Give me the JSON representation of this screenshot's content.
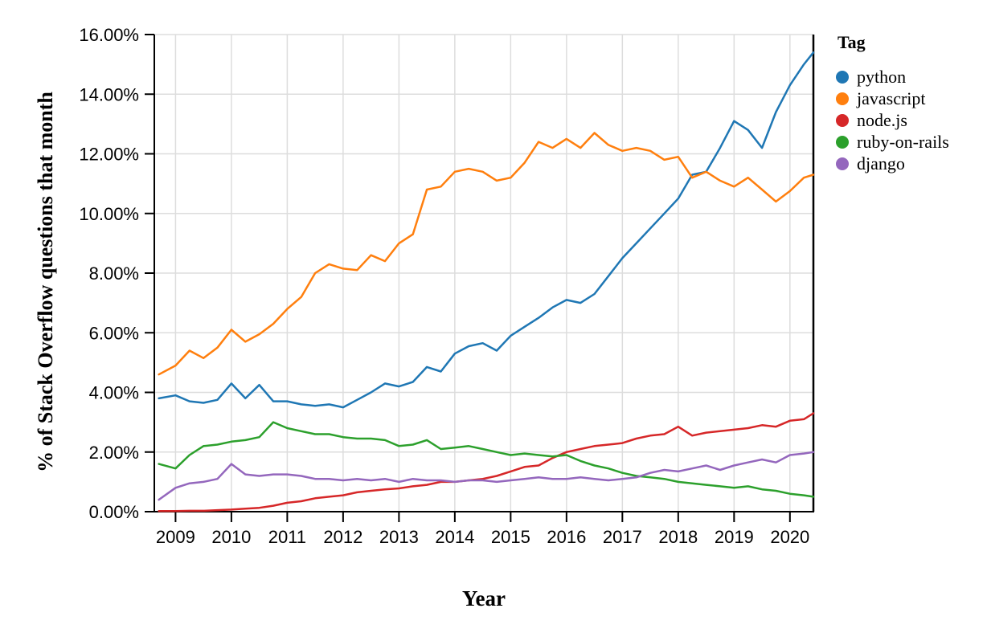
{
  "chart_data": {
    "type": "line",
    "title": "",
    "xlabel": "Year",
    "ylabel": "% of Stack Overflow questions that month",
    "legend_title": "Tag",
    "legend_position": "top-right",
    "grid": true,
    "xlim": [
      2008.62,
      2020.42
    ],
    "ylim": [
      0,
      16
    ],
    "x_ticks": [
      {
        "value": 2009,
        "label": "2009"
      },
      {
        "value": 2010,
        "label": "2010"
      },
      {
        "value": 2011,
        "label": "2011"
      },
      {
        "value": 2012,
        "label": "2012"
      },
      {
        "value": 2013,
        "label": "2013"
      },
      {
        "value": 2014,
        "label": "2014"
      },
      {
        "value": 2015,
        "label": "2015"
      },
      {
        "value": 2016,
        "label": "2016"
      },
      {
        "value": 2017,
        "label": "2017"
      },
      {
        "value": 2018,
        "label": "2018"
      },
      {
        "value": 2019,
        "label": "2019"
      },
      {
        "value": 2020,
        "label": "2020"
      }
    ],
    "y_ticks": [
      {
        "value": 0,
        "label": "0.00%"
      },
      {
        "value": 2,
        "label": "2.00%"
      },
      {
        "value": 4,
        "label": "4.00%"
      },
      {
        "value": 6,
        "label": "6.00%"
      },
      {
        "value": 8,
        "label": "8.00%"
      },
      {
        "value": 10,
        "label": "10.00%"
      },
      {
        "value": 12,
        "label": "12.00%"
      },
      {
        "value": 14,
        "label": "14.00%"
      },
      {
        "value": 16,
        "label": "16.00%"
      }
    ],
    "x": [
      2008.7,
      2009.0,
      2009.25,
      2009.5,
      2009.75,
      2010.0,
      2010.25,
      2010.5,
      2010.75,
      2011.0,
      2011.25,
      2011.5,
      2011.75,
      2012.0,
      2012.25,
      2012.5,
      2012.75,
      2013.0,
      2013.25,
      2013.5,
      2013.75,
      2014.0,
      2014.25,
      2014.5,
      2014.75,
      2015.0,
      2015.25,
      2015.5,
      2015.75,
      2016.0,
      2016.25,
      2016.5,
      2016.75,
      2017.0,
      2017.25,
      2017.5,
      2017.75,
      2018.0,
      2018.25,
      2018.5,
      2018.75,
      2019.0,
      2019.25,
      2019.5,
      2019.75,
      2020.0,
      2020.25,
      2020.42
    ],
    "series": [
      {
        "name": "python",
        "color": "#1f77b4",
        "values": [
          3.8,
          3.9,
          3.7,
          3.65,
          3.75,
          4.3,
          3.8,
          4.25,
          3.7,
          3.7,
          3.6,
          3.55,
          3.6,
          3.5,
          3.75,
          4.0,
          4.3,
          4.2,
          4.35,
          4.85,
          4.7,
          5.3,
          5.55,
          5.65,
          5.4,
          5.9,
          6.2,
          6.5,
          6.85,
          7.1,
          7.0,
          7.3,
          7.9,
          8.5,
          9.0,
          9.5,
          10.0,
          10.5,
          11.3,
          11.4,
          12.2,
          13.1,
          12.8,
          12.2,
          13.4,
          14.3,
          15.0,
          15.4
        ]
      },
      {
        "name": "javascript",
        "color": "#ff7f0e",
        "values": [
          4.6,
          4.9,
          5.4,
          5.15,
          5.5,
          6.1,
          5.7,
          5.95,
          6.3,
          6.8,
          7.2,
          8.0,
          8.3,
          8.15,
          8.1,
          8.6,
          8.4,
          9.0,
          9.3,
          10.8,
          10.9,
          11.4,
          11.5,
          11.4,
          11.1,
          11.2,
          11.7,
          12.4,
          12.2,
          12.5,
          12.2,
          12.7,
          12.3,
          12.1,
          12.2,
          12.1,
          11.8,
          11.9,
          11.2,
          11.4,
          11.1,
          10.9,
          11.2,
          10.8,
          10.4,
          10.75,
          11.2,
          11.3
        ]
      },
      {
        "name": "node.js",
        "color": "#d62728",
        "values": [
          0.02,
          0.02,
          0.03,
          0.03,
          0.05,
          0.07,
          0.1,
          0.13,
          0.2,
          0.3,
          0.35,
          0.45,
          0.5,
          0.55,
          0.65,
          0.7,
          0.75,
          0.78,
          0.85,
          0.9,
          1.0,
          1.0,
          1.05,
          1.1,
          1.2,
          1.35,
          1.5,
          1.55,
          1.8,
          2.0,
          2.1,
          2.2,
          2.25,
          2.3,
          2.45,
          2.55,
          2.6,
          2.85,
          2.55,
          2.65,
          2.7,
          2.75,
          2.8,
          2.9,
          2.85,
          3.05,
          3.1,
          3.3
        ]
      },
      {
        "name": "ruby-on-rails",
        "color": "#2ca02c",
        "values": [
          1.6,
          1.45,
          1.9,
          2.2,
          2.25,
          2.35,
          2.4,
          2.5,
          3.0,
          2.8,
          2.7,
          2.6,
          2.6,
          2.5,
          2.45,
          2.45,
          2.4,
          2.2,
          2.25,
          2.4,
          2.1,
          2.15,
          2.2,
          2.1,
          2.0,
          1.9,
          1.95,
          1.9,
          1.85,
          1.9,
          1.7,
          1.55,
          1.45,
          1.3,
          1.2,
          1.15,
          1.1,
          1.0,
          0.95,
          0.9,
          0.85,
          0.8,
          0.85,
          0.75,
          0.7,
          0.6,
          0.55,
          0.5
        ]
      },
      {
        "name": "django",
        "color": "#9467bd",
        "values": [
          0.4,
          0.8,
          0.95,
          1.0,
          1.1,
          1.6,
          1.25,
          1.2,
          1.25,
          1.25,
          1.2,
          1.1,
          1.1,
          1.05,
          1.1,
          1.05,
          1.1,
          1.0,
          1.1,
          1.05,
          1.05,
          1.0,
          1.05,
          1.05,
          1.0,
          1.05,
          1.1,
          1.15,
          1.1,
          1.1,
          1.15,
          1.1,
          1.05,
          1.1,
          1.15,
          1.3,
          1.4,
          1.35,
          1.45,
          1.55,
          1.4,
          1.55,
          1.65,
          1.75,
          1.65,
          1.9,
          1.95,
          2.0
        ]
      }
    ],
    "colors": {
      "grid": "#dddddd",
      "axis": "#000000",
      "background": "#ffffff"
    }
  }
}
